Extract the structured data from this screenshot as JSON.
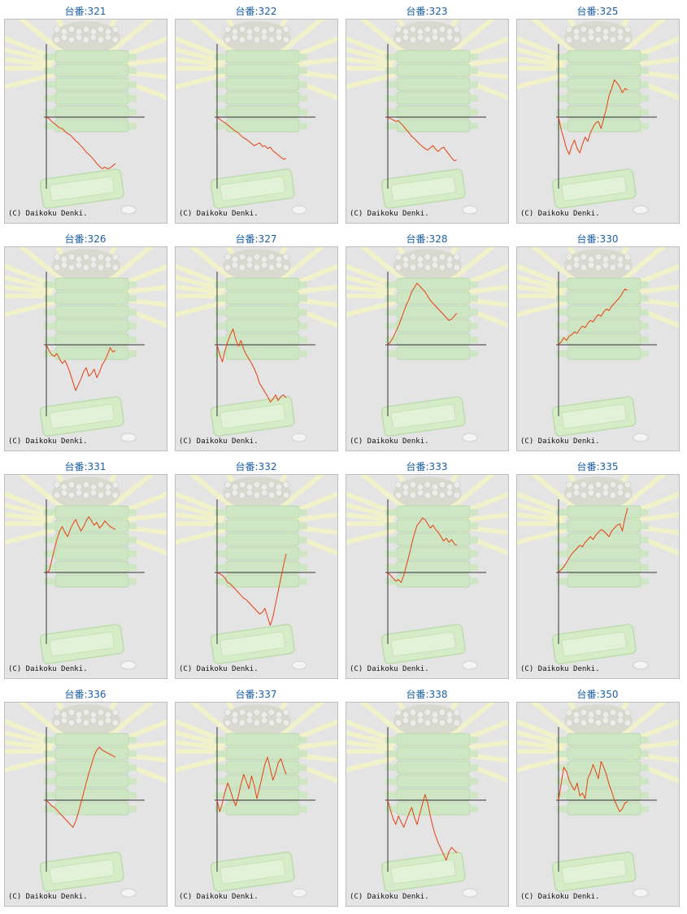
{
  "colors": {
    "title": "#1a5fa8",
    "line": "#e8400f",
    "axis": "#333333",
    "panel_bg": "#e4e4e4"
  },
  "copyright": "(C) Daikoku Denki.",
  "chart_data": [
    {
      "type": "line",
      "title": "台番:321",
      "x": [
        0,
        1,
        2,
        3,
        4,
        5,
        6,
        7,
        8,
        9,
        10,
        11,
        12,
        13,
        14,
        15,
        16,
        17,
        18,
        19,
        20,
        21,
        22,
        23,
        24,
        25,
        26
      ],
      "y": [
        0,
        -2,
        -6,
        -9,
        -12,
        -15,
        -16,
        -20,
        -23,
        -25,
        -29,
        -33,
        -36,
        -40,
        -44,
        -49,
        -52,
        -56,
        -60,
        -65,
        -69,
        -72,
        -70,
        -72,
        -71,
        -68,
        -65
      ]
    },
    {
      "type": "line",
      "title": "台番:322",
      "x": [
        0,
        1,
        2,
        3,
        4,
        5,
        6,
        7,
        8,
        9,
        10,
        11,
        12,
        13,
        14,
        15,
        16,
        17,
        18,
        19,
        20,
        21,
        22,
        23,
        24,
        25,
        26
      ],
      "y": [
        0,
        -3,
        -6,
        -8,
        -11,
        -14,
        -17,
        -20,
        -22,
        -26,
        -29,
        -31,
        -34,
        -37,
        -40,
        -38,
        -36,
        -41,
        -40,
        -44,
        -42,
        -47,
        -50,
        -53,
        -56,
        -59,
        -58
      ]
    },
    {
      "type": "line",
      "title": "台番:323",
      "x": [
        0,
        1,
        2,
        3,
        4,
        5,
        6,
        7,
        8,
        9,
        10,
        11,
        12,
        13,
        14,
        15,
        16,
        17,
        18,
        19,
        20,
        21,
        22,
        23,
        24,
        25,
        26
      ],
      "y": [
        0,
        -2,
        -4,
        -6,
        -5,
        -9,
        -13,
        -18,
        -22,
        -27,
        -30,
        -34,
        -38,
        -41,
        -44,
        -46,
        -43,
        -40,
        -45,
        -48,
        -44,
        -42,
        -47,
        -52,
        -57,
        -61,
        -60
      ]
    },
    {
      "type": "line",
      "title": "台番:325",
      "x": [
        0,
        1,
        2,
        3,
        4,
        5,
        6,
        7,
        8,
        9,
        10,
        11,
        12,
        13,
        14,
        15,
        16,
        17,
        18,
        19,
        20,
        21,
        22,
        23,
        24,
        25,
        26
      ],
      "y": [
        0,
        -18,
        -30,
        -44,
        -52,
        -40,
        -32,
        -44,
        -50,
        -38,
        -28,
        -34,
        -22,
        -14,
        -8,
        -6,
        -16,
        -2,
        12,
        30,
        40,
        52,
        48,
        42,
        34,
        40,
        38
      ]
    },
    {
      "type": "line",
      "title": "台番:326",
      "x": [
        0,
        1,
        2,
        3,
        4,
        5,
        6,
        7,
        8,
        9,
        10,
        11,
        12,
        13,
        14,
        15,
        16,
        17,
        18,
        19,
        20,
        21,
        22,
        23,
        24,
        25,
        26
      ],
      "y": [
        0,
        -8,
        -14,
        -16,
        -12,
        -20,
        -26,
        -22,
        -30,
        -40,
        -52,
        -64,
        -56,
        -48,
        -38,
        -32,
        -44,
        -40,
        -34,
        -46,
        -38,
        -28,
        -22,
        -14,
        -4,
        -10,
        -8
      ]
    },
    {
      "type": "line",
      "title": "台番:327",
      "x": [
        0,
        1,
        2,
        3,
        4,
        5,
        6,
        7,
        8,
        9,
        10,
        11,
        12,
        13,
        14,
        15,
        16,
        17,
        18,
        19,
        20,
        21,
        22,
        23,
        24,
        25,
        26
      ],
      "y": [
        0,
        -14,
        -24,
        -8,
        4,
        14,
        22,
        8,
        -2,
        6,
        -6,
        -14,
        -20,
        -26,
        -34,
        -42,
        -54,
        -60,
        -66,
        -72,
        -80,
        -76,
        -70,
        -78,
        -72,
        -70,
        -74
      ]
    },
    {
      "type": "line",
      "title": "台番:328",
      "x": [
        0,
        1,
        2,
        3,
        4,
        5,
        6,
        7,
        8,
        9,
        10,
        11,
        12,
        13,
        14,
        15,
        16,
        17,
        18,
        19,
        20,
        21,
        22,
        23,
        24,
        25,
        26
      ],
      "y": [
        0,
        4,
        10,
        18,
        26,
        36,
        46,
        56,
        64,
        74,
        80,
        86,
        82,
        78,
        74,
        68,
        62,
        58,
        54,
        50,
        46,
        42,
        38,
        34,
        36,
        40,
        44
      ]
    },
    {
      "type": "line",
      "title": "台番:330",
      "x": [
        0,
        1,
        2,
        3,
        4,
        5,
        6,
        7,
        8,
        9,
        10,
        11,
        12,
        13,
        14,
        15,
        16,
        17,
        18,
        19,
        20,
        21,
        22,
        23,
        24,
        25,
        26
      ],
      "y": [
        0,
        4,
        10,
        6,
        12,
        14,
        18,
        16,
        22,
        26,
        24,
        30,
        34,
        32,
        38,
        42,
        40,
        46,
        50,
        48,
        54,
        58,
        62,
        66,
        72,
        78,
        76
      ]
    },
    {
      "type": "line",
      "title": "台番:331",
      "x": [
        0,
        1,
        2,
        3,
        4,
        5,
        6,
        7,
        8,
        9,
        10,
        11,
        12,
        13,
        14,
        15,
        16,
        17,
        18,
        19,
        20,
        21,
        22,
        23,
        24,
        25,
        26
      ],
      "y": [
        0,
        2,
        16,
        32,
        46,
        58,
        64,
        56,
        50,
        60,
        68,
        74,
        66,
        58,
        64,
        72,
        78,
        72,
        66,
        70,
        62,
        66,
        72,
        68,
        64,
        62,
        60
      ]
    },
    {
      "type": "line",
      "title": "台番:332",
      "x": [
        0,
        1,
        2,
        3,
        4,
        5,
        6,
        7,
        8,
        9,
        10,
        11,
        12,
        13,
        14,
        15,
        16,
        17,
        18,
        19,
        20,
        21,
        22,
        23,
        24,
        25,
        26
      ],
      "y": [
        0,
        -2,
        -4,
        -8,
        -14,
        -16,
        -20,
        -24,
        -28,
        -32,
        -36,
        -38,
        -42,
        -46,
        -50,
        -54,
        -58,
        -56,
        -50,
        -62,
        -74,
        -62,
        -44,
        -26,
        -8,
        10,
        26
      ]
    },
    {
      "type": "line",
      "title": "台番:333",
      "x": [
        0,
        1,
        2,
        3,
        4,
        5,
        6,
        7,
        8,
        9,
        10,
        11,
        12,
        13,
        14,
        15,
        16,
        17,
        18,
        19,
        20,
        21,
        22,
        23,
        24,
        25,
        26
      ],
      "y": [
        0,
        -4,
        -8,
        -12,
        -10,
        -14,
        -4,
        10,
        24,
        40,
        54,
        66,
        70,
        76,
        74,
        68,
        62,
        66,
        60,
        56,
        50,
        44,
        48,
        42,
        46,
        40,
        38
      ]
    },
    {
      "type": "line",
      "title": "台番:335",
      "x": [
        0,
        1,
        2,
        3,
        4,
        5,
        6,
        7,
        8,
        9,
        10,
        11,
        12,
        13,
        14,
        15,
        16,
        17,
        18,
        19,
        20,
        21,
        22,
        23,
        24,
        25,
        26
      ],
      "y": [
        0,
        4,
        8,
        14,
        20,
        26,
        30,
        34,
        38,
        36,
        42,
        46,
        50,
        46,
        52,
        56,
        60,
        58,
        54,
        50,
        58,
        62,
        66,
        68,
        58,
        76,
        90
      ]
    },
    {
      "type": "line",
      "title": "台番:336",
      "x": [
        0,
        1,
        2,
        3,
        4,
        5,
        6,
        7,
        8,
        9,
        10,
        11,
        12,
        13,
        14,
        15,
        16,
        17,
        18,
        19,
        20,
        21,
        22,
        23,
        24,
        25,
        26
      ],
      "y": [
        0,
        -4,
        -8,
        -10,
        -14,
        -18,
        -22,
        -26,
        -30,
        -34,
        -38,
        -30,
        -18,
        -4,
        10,
        24,
        38,
        50,
        62,
        70,
        74,
        70,
        68,
        66,
        64,
        62,
        60
      ]
    },
    {
      "type": "line",
      "title": "台番:337",
      "x": [
        0,
        1,
        2,
        3,
        4,
        5,
        6,
        7,
        8,
        9,
        10,
        11,
        12,
        13,
        14,
        15,
        16,
        17,
        18,
        19,
        20,
        21,
        22,
        23,
        24,
        25,
        26
      ],
      "y": [
        0,
        -16,
        -4,
        12,
        24,
        14,
        2,
        -8,
        6,
        22,
        36,
        26,
        16,
        34,
        20,
        2,
        18,
        34,
        50,
        60,
        44,
        28,
        38,
        52,
        58,
        46,
        36
      ]
    },
    {
      "type": "line",
      "title": "台番:338",
      "x": [
        0,
        1,
        2,
        3,
        4,
        5,
        6,
        7,
        8,
        9,
        10,
        11,
        12,
        13,
        14,
        15,
        16,
        17,
        18,
        19,
        20,
        21,
        22,
        23,
        24,
        25,
        26
      ],
      "y": [
        0,
        -14,
        -26,
        -34,
        -22,
        -30,
        -38,
        -28,
        -18,
        -10,
        -24,
        -34,
        -20,
        -6,
        8,
        -4,
        -22,
        -38,
        -50,
        -60,
        -68,
        -76,
        -84,
        -72,
        -66,
        -70,
        -74
      ]
    },
    {
      "type": "line",
      "title": "台番:350",
      "x": [
        0,
        1,
        2,
        3,
        4,
        5,
        6,
        7,
        8,
        9,
        10,
        11,
        12,
        13,
        14,
        15,
        16,
        17,
        18,
        19,
        20,
        21,
        22,
        23,
        24,
        25,
        26
      ],
      "y": [
        0,
        24,
        46,
        40,
        28,
        20,
        14,
        24,
        6,
        10,
        2,
        30,
        38,
        50,
        40,
        30,
        54,
        46,
        36,
        22,
        12,
        0,
        -8,
        -16,
        -12,
        -4,
        -2
      ]
    }
  ]
}
